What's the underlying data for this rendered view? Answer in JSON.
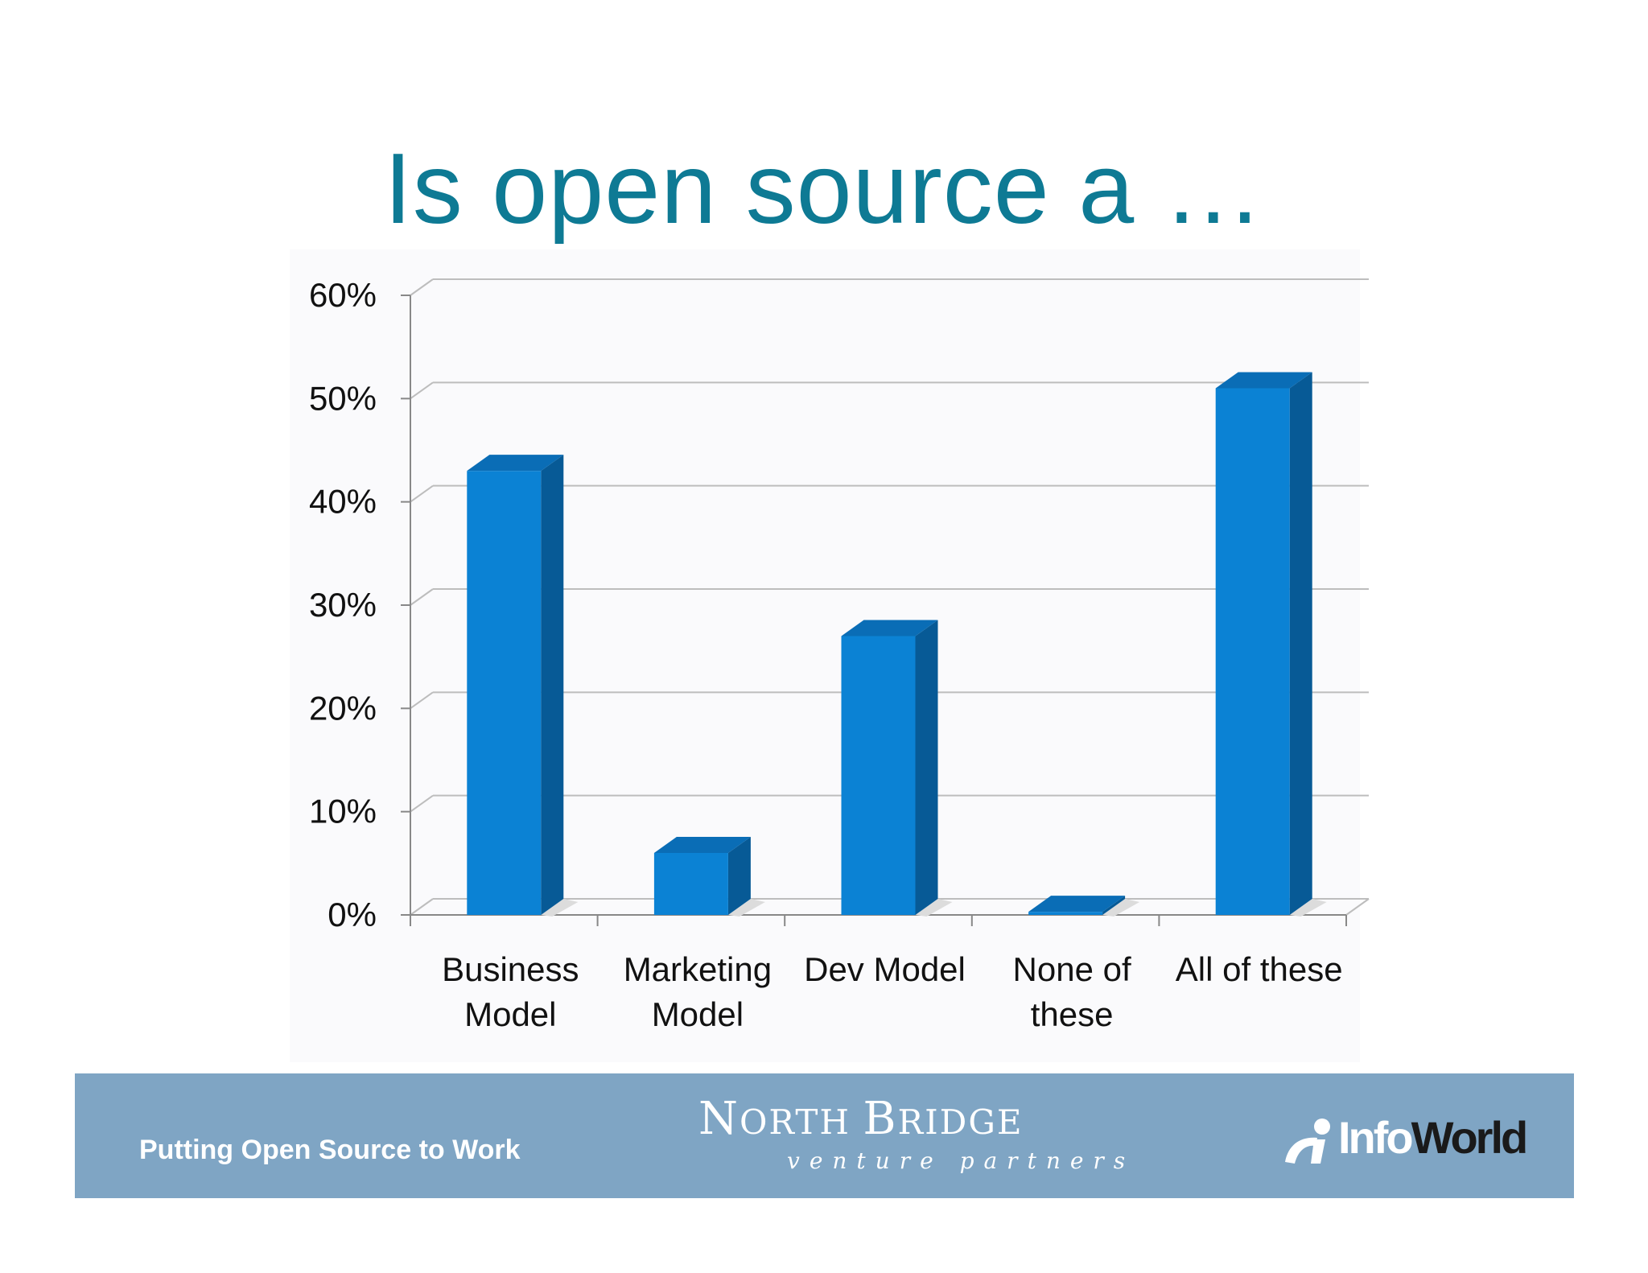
{
  "slide": {
    "title": "Is open source a …",
    "title_color": "#0e7a94"
  },
  "chart_data": {
    "type": "bar",
    "title": "",
    "xlabel": "",
    "ylabel": "",
    "categories": [
      [
        "Business",
        "Model"
      ],
      [
        "Marketing",
        "Model"
      ],
      [
        "Dev Model"
      ],
      [
        "None of",
        "these"
      ],
      [
        "All of these"
      ]
    ],
    "values": [
      43,
      6,
      27,
      0.3,
      51
    ],
    "ylim": [
      0,
      60
    ],
    "yticks": [
      0,
      10,
      20,
      30,
      40,
      50,
      60
    ],
    "ytick_labels": [
      "0%",
      "10%",
      "20%",
      "30%",
      "40%",
      "50%",
      "60%"
    ],
    "grid": true,
    "style": "3d-column",
    "bar_color": "#0b82d4",
    "bar_side_color": "#075a96",
    "bar_top_color": "#0a6db6"
  },
  "footer": {
    "tagline": "Putting Open Source to Work",
    "background": "#7fa5c4",
    "north_bridge": {
      "name": "North Bridge",
      "subtitle": "venture partners"
    },
    "infoworld": {
      "part1": "Info",
      "part2": "World"
    }
  }
}
